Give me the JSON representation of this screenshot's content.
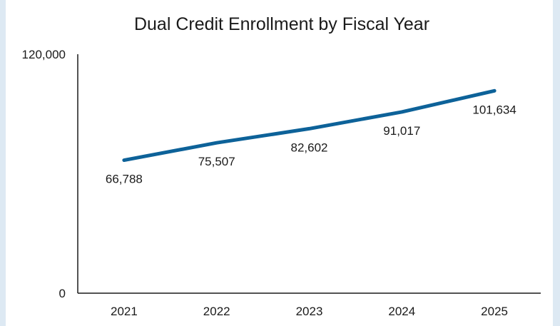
{
  "chart_data": {
    "type": "line",
    "title": "Dual Credit Enrollment by Fiscal Year",
    "categories": [
      "2021",
      "2022",
      "2023",
      "2024",
      "2025"
    ],
    "series": [
      {
        "values": [
          66788,
          75507,
          82602,
          91017,
          101634
        ]
      }
    ],
    "data_labels": [
      "66,788",
      "75,507",
      "82,602",
      "91,017",
      "101,634"
    ],
    "y_ticks": [
      "0",
      "120,000"
    ],
    "ylim": [
      0,
      120000
    ],
    "grid": false,
    "line_color": "#0d6299",
    "background_color": "#dde9f3"
  }
}
